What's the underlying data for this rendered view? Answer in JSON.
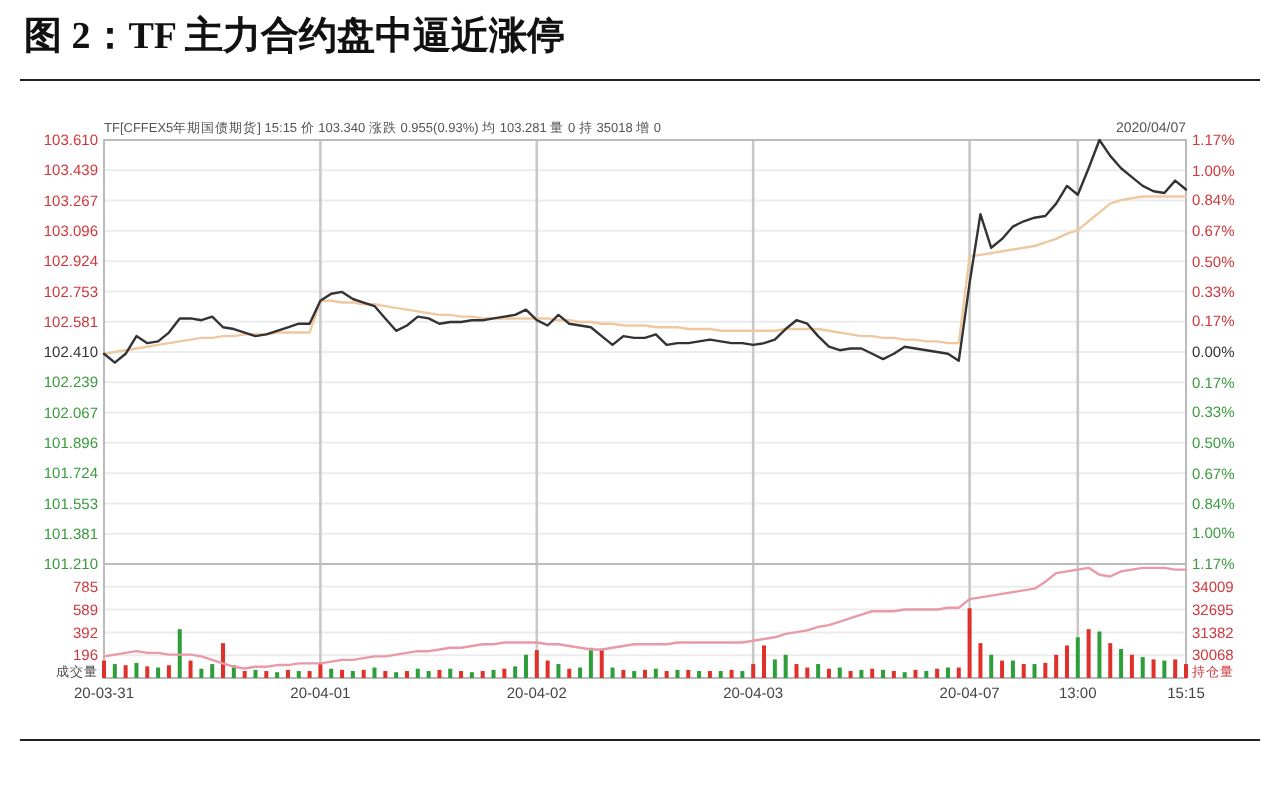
{
  "chart_data": [
    {
      "type": "line",
      "title": "图 2：TF 主力合约盘中逼近涨停",
      "subtitle": "TF[CFFEX5年期国债期货] 15:15 价 103.340 涨跌 0.955(0.93%) 均 103.281 量 0 持 35018 增 0",
      "annotations": [
        "2020/04/07"
      ],
      "categories": [
        null,
        null,
        null,
        null,
        null,
        null,
        null,
        null,
        null,
        null,
        null,
        null,
        null,
        null,
        null,
        null,
        null,
        null,
        null,
        null,
        null,
        null,
        null,
        null,
        null,
        null,
        null,
        null,
        null,
        null,
        null,
        null,
        null,
        null,
        null,
        null,
        null,
        null,
        null,
        null,
        null,
        null,
        null,
        null,
        null,
        null,
        null,
        null,
        null,
        null,
        null,
        null,
        null,
        null,
        null,
        null,
        null,
        null,
        null,
        null,
        null,
        null,
        null,
        null,
        null,
        null,
        null,
        null,
        null,
        null,
        null,
        null,
        null,
        null,
        null,
        null,
        null,
        null,
        null,
        null,
        null,
        null,
        null,
        null,
        null,
        null,
        null,
        null,
        null,
        null,
        null,
        null,
        null,
        null,
        null,
        null,
        null,
        null,
        null,
        null,
        null
      ],
      "ylim": [
        101.21,
        103.61
      ],
      "yticks": [
        {
          "value": 103.61,
          "label": "103.610"
        },
        {
          "value": 103.439,
          "label": "103.439"
        },
        {
          "value": 103.267,
          "label": "103.267"
        },
        {
          "value": 103.096,
          "label": "103.096"
        },
        {
          "value": 102.924,
          "label": "102.924"
        },
        {
          "value": 102.753,
          "label": "102.753"
        },
        {
          "value": 102.581,
          "label": "102.581"
        },
        {
          "value": 102.41,
          "label": "102.410"
        },
        {
          "value": 102.239,
          "label": "102.239"
        },
        {
          "value": 102.067,
          "label": "102.067"
        },
        {
          "value": 101.896,
          "label": "101.896"
        },
        {
          "value": 101.724,
          "label": "101.724"
        },
        {
          "value": 101.553,
          "label": "101.553"
        },
        {
          "value": 101.381,
          "label": "101.381"
        },
        {
          "value": 101.21,
          "label": "101.210"
        }
      ],
      "y2lim": [
        -1.17,
        1.17
      ],
      "y2ticks": [
        {
          "value": 1.17,
          "label": "1.17%"
        },
        {
          "value": 1,
          "label": "1.00%"
        },
        {
          "value": 0.84,
          "label": "0.84%"
        },
        {
          "value": 0.67,
          "label": "0.67%"
        },
        {
          "value": 0.5,
          "label": "0.50%"
        },
        {
          "value": 0.33,
          "label": "0.33%"
        },
        {
          "value": 0.17,
          "label": "0.17%"
        },
        {
          "value": 0,
          "label": "0.00%"
        },
        {
          "value": -0.17,
          "label": "0.17%"
        },
        {
          "value": -0.33,
          "label": "0.33%"
        },
        {
          "value": -0.5,
          "label": "0.50%"
        },
        {
          "value": -0.67,
          "label": "0.67%"
        },
        {
          "value": -0.84,
          "label": "0.84%"
        },
        {
          "value": -1,
          "label": "1.00%"
        },
        {
          "value": -1.17,
          "label": "1.17%"
        }
      ],
      "grid": true,
      "tick_labels": "y",
      "series": [
        {
          "color": "#f0c8a0",
          "values": [
            102.4,
            102.41,
            102.42,
            102.43,
            102.44,
            102.45,
            102.46,
            102.47,
            102.48,
            102.49,
            102.49,
            102.5,
            102.5,
            102.51,
            102.51,
            102.51,
            102.52,
            102.52,
            102.52,
            102.52,
            102.7,
            102.7,
            102.69,
            102.69,
            102.68,
            102.68,
            102.67,
            102.66,
            102.65,
            102.64,
            102.63,
            102.62,
            102.62,
            102.61,
            102.61,
            102.6,
            102.6,
            102.6,
            102.6,
            102.6,
            102.6,
            102.6,
            102.59,
            102.59,
            102.58,
            102.58,
            102.57,
            102.57,
            102.56,
            102.56,
            102.56,
            102.55,
            102.55,
            102.55,
            102.54,
            102.54,
            102.54,
            102.53,
            102.53,
            102.53,
            102.53,
            102.53,
            102.53,
            102.54,
            102.54,
            102.54,
            102.54,
            102.53,
            102.52,
            102.51,
            102.5,
            102.5,
            102.49,
            102.49,
            102.48,
            102.48,
            102.47,
            102.47,
            102.46,
            102.46,
            102.95,
            102.96,
            102.97,
            102.98,
            102.99,
            103.0,
            103.01,
            103.03,
            103.05,
            103.08,
            103.1,
            103.15,
            103.2,
            103.25,
            103.27,
            103.28,
            103.29,
            103.29,
            103.29,
            103.29,
            103.29
          ]
        },
        {
          "color": "#333333",
          "values": [
            102.4,
            102.35,
            102.4,
            102.5,
            102.46,
            102.47,
            102.52,
            102.6,
            102.6,
            102.59,
            102.61,
            102.55,
            102.54,
            102.52,
            102.5,
            102.51,
            102.53,
            102.55,
            102.57,
            102.57,
            102.7,
            102.74,
            102.75,
            102.71,
            102.69,
            102.67,
            102.6,
            102.53,
            102.56,
            102.61,
            102.6,
            102.57,
            102.58,
            102.58,
            102.59,
            102.59,
            102.6,
            102.61,
            102.62,
            102.65,
            102.59,
            102.56,
            102.62,
            102.57,
            102.56,
            102.55,
            102.5,
            102.45,
            102.5,
            102.49,
            102.49,
            102.51,
            102.45,
            102.46,
            102.46,
            102.47,
            102.48,
            102.47,
            102.46,
            102.46,
            102.45,
            102.46,
            102.48,
            102.54,
            102.59,
            102.57,
            102.5,
            102.44,
            102.42,
            102.43,
            102.43,
            102.4,
            102.37,
            102.4,
            102.44,
            102.43,
            102.42,
            102.41,
            102.4,
            102.36,
            102.8,
            103.19,
            103.0,
            103.05,
            103.12,
            103.15,
            103.17,
            103.18,
            103.25,
            103.35,
            103.3,
            103.45,
            103.61,
            103.52,
            103.45,
            103.4,
            103.35,
            103.32,
            103.31,
            103.38,
            103.33
          ]
        }
      ]
    },
    {
      "type": "bar",
      "ylabel": "成交量",
      "y2label": "持仓量",
      "categories": [
        "20-03-31",
        null,
        null,
        null,
        null,
        null,
        null,
        null,
        null,
        null,
        null,
        null,
        null,
        null,
        null,
        null,
        null,
        null,
        null,
        null,
        "20-04-01",
        null,
        null,
        null,
        null,
        null,
        null,
        null,
        null,
        null,
        null,
        null,
        null,
        null,
        null,
        null,
        null,
        null,
        null,
        null,
        "20-04-02",
        null,
        null,
        null,
        null,
        null,
        null,
        null,
        null,
        null,
        null,
        null,
        null,
        null,
        null,
        null,
        null,
        null,
        null,
        null,
        "20-04-03",
        null,
        null,
        null,
        null,
        null,
        null,
        null,
        null,
        null,
        null,
        null,
        null,
        null,
        null,
        null,
        null,
        null,
        null,
        null,
        "20-04-07",
        null,
        null,
        null,
        null,
        null,
        null,
        null,
        null,
        null,
        "13:00",
        null,
        null,
        null,
        null,
        null,
        null,
        null,
        null,
        null,
        "15:15"
      ],
      "ylim": [
        0,
        981
      ],
      "yticks": [
        196,
        392,
        589,
        785
      ],
      "y2lim": [
        28755,
        35322
      ],
      "y2ticks": [
        30068,
        31382,
        32695,
        34009
      ],
      "grid": true,
      "series": [
        {
          "values": [
            150,
            120,
            110,
            130,
            100,
            90,
            110,
            420,
            150,
            80,
            120,
            300,
            110,
            60,
            70,
            60,
            50,
            70,
            60,
            60,
            130,
            80,
            70,
            60,
            70,
            90,
            60,
            50,
            60,
            80,
            60,
            70,
            80,
            60,
            50,
            60,
            70,
            80,
            100,
            200,
            240,
            150,
            120,
            80,
            90,
            260,
            250,
            90,
            70,
            60,
            70,
            80,
            60,
            70,
            70,
            60,
            60,
            60,
            70,
            60,
            120,
            280,
            160,
            200,
            120,
            90,
            120,
            80,
            90,
            60,
            70,
            80,
            70,
            60,
            50,
            70,
            60,
            80,
            90,
            90,
            600,
            300,
            200,
            150,
            150,
            120,
            120,
            130,
            200,
            280,
            350,
            420,
            400,
            300,
            250,
            200,
            180,
            160,
            150,
            160,
            120
          ],
          "colors": [
            "#e0302a",
            "#2e9e3a",
            "#e0302a",
            "#2e9e3a",
            "#e0302a",
            "#2e9e3a",
            "#e0302a",
            "#2e9e3a",
            "#e0302a",
            "#2e9e3a",
            "#2e9e3a",
            "#e0302a",
            "#2e9e3a",
            "#e0302a",
            "#2e9e3a",
            "#e0302a",
            "#2e9e3a",
            "#e0302a",
            "#2e9e3a",
            "#e0302a",
            "#e0302a",
            "#2e9e3a",
            "#e0302a",
            "#2e9e3a",
            "#e0302a",
            "#2e9e3a",
            "#e0302a",
            "#2e9e3a",
            "#e0302a",
            "#2e9e3a",
            "#2e9e3a",
            "#e0302a",
            "#2e9e3a",
            "#e0302a",
            "#2e9e3a",
            "#e0302a",
            "#2e9e3a",
            "#e0302a",
            "#2e9e3a",
            "#2e9e3a",
            "#e0302a",
            "#e0302a",
            "#2e9e3a",
            "#e0302a",
            "#2e9e3a",
            "#2e9e3a",
            "#e0302a",
            "#2e9e3a",
            "#e0302a",
            "#2e9e3a",
            "#e0302a",
            "#2e9e3a",
            "#e0302a",
            "#2e9e3a",
            "#e0302a",
            "#2e9e3a",
            "#e0302a",
            "#2e9e3a",
            "#e0302a",
            "#2e9e3a",
            "#e0302a",
            "#e0302a",
            "#2e9e3a",
            "#2e9e3a",
            "#e0302a",
            "#e0302a",
            "#2e9e3a",
            "#e0302a",
            "#2e9e3a",
            "#e0302a",
            "#2e9e3a",
            "#e0302a",
            "#2e9e3a",
            "#e0302a",
            "#2e9e3a",
            "#e0302a",
            "#2e9e3a",
            "#e0302a",
            "#2e9e3a",
            "#e0302a",
            "#e0302a",
            "#e0302a",
            "#2e9e3a",
            "#e0302a",
            "#2e9e3a",
            "#e0302a",
            "#2e9e3a",
            "#e0302a",
            "#e0302a",
            "#e0302a",
            "#2e9e3a",
            "#e0302a",
            "#2e9e3a",
            "#e0302a",
            "#2e9e3a",
            "#e0302a",
            "#2e9e3a",
            "#e0302a",
            "#2e9e3a",
            "#e0302a",
            "#e0302a"
          ]
        },
        {
          "type": "line",
          "axis": "y2",
          "color": "#e89aa8",
          "values": [
            30000,
            30100,
            30200,
            30300,
            30200,
            30200,
            30100,
            30100,
            30100,
            30000,
            29800,
            29600,
            29400,
            29300,
            29400,
            29400,
            29500,
            29500,
            29600,
            29600,
            29600,
            29700,
            29800,
            29800,
            29900,
            30000,
            30000,
            30100,
            30200,
            30300,
            30300,
            30400,
            30500,
            30500,
            30600,
            30700,
            30700,
            30800,
            30800,
            30800,
            30800,
            30700,
            30700,
            30600,
            30500,
            30400,
            30400,
            30500,
            30600,
            30700,
            30700,
            30700,
            30700,
            30800,
            30800,
            30800,
            30800,
            30800,
            30800,
            30800,
            30900,
            31000,
            31100,
            31300,
            31400,
            31500,
            31700,
            31800,
            32000,
            32200,
            32400,
            32600,
            32600,
            32600,
            32700,
            32700,
            32700,
            32700,
            32800,
            32800,
            33300,
            33400,
            33500,
            33600,
            33700,
            33800,
            33900,
            34300,
            34800,
            34900,
            35000,
            35100,
            34700,
            34600,
            34900,
            35000,
            35100,
            35100,
            35100,
            35000,
            35000
          ]
        }
      ]
    }
  ]
}
